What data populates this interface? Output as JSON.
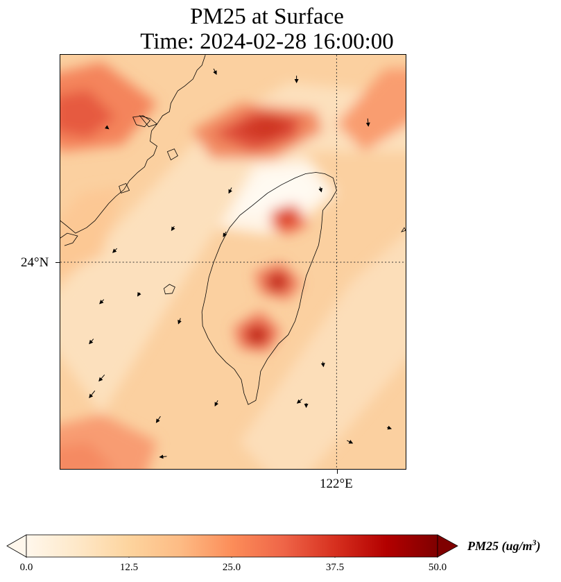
{
  "title": {
    "line1": "PM25 at Surface",
    "line2": "Time: 2024-02-28 16:00:00"
  },
  "map": {
    "region": "Taiwan Strait",
    "variable": "PM25",
    "gridlines": {
      "latitude": "24°N",
      "longitude": "122°E"
    },
    "wind_vectors_shown": true,
    "coastline_color": "#000000"
  },
  "colorbar": {
    "label": "PM25 (ug/m",
    "label_superscript": "3",
    "label_close": ")",
    "ticks": [
      "0.0",
      "12.5",
      "25.0",
      "37.5",
      "50.0"
    ],
    "min": 0.0,
    "max": 50.0,
    "extend": "both",
    "colormap": "OrRd",
    "colors": [
      "#fff7ec",
      "#fdd49e",
      "#fc8d59",
      "#d7301f",
      "#7f0000"
    ]
  }
}
